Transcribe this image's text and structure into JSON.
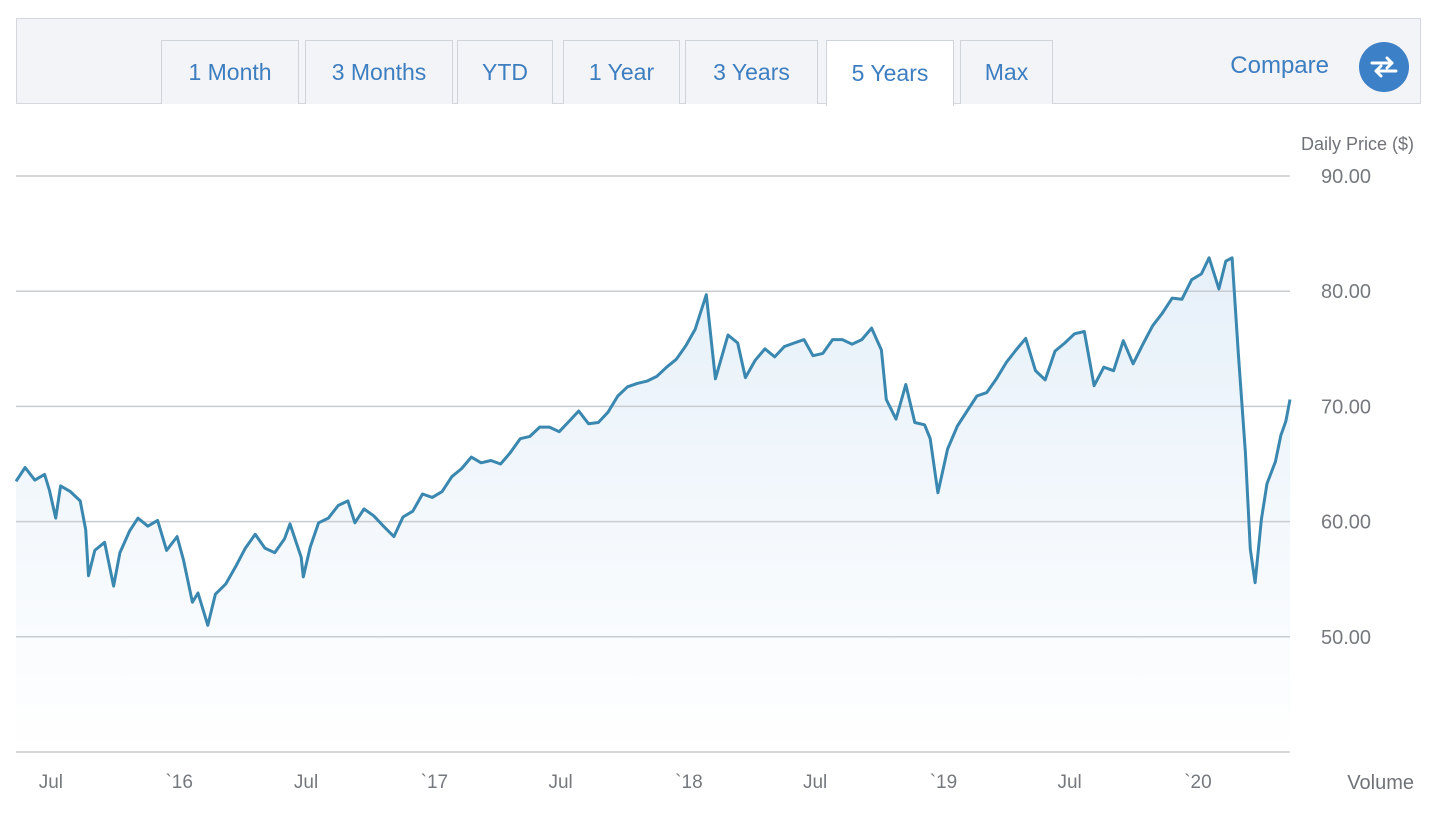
{
  "range_tabs": [
    {
      "label": "1 Month",
      "active": false
    },
    {
      "label": "3 Months",
      "active": false
    },
    {
      "label": "YTD",
      "active": false
    },
    {
      "label": "1 Year",
      "active": false
    },
    {
      "label": "3 Years",
      "active": false
    },
    {
      "label": "5 Years",
      "active": true
    },
    {
      "label": "Max",
      "active": false
    }
  ],
  "compare_label": "Compare",
  "compare_icon": "swap-arrows-icon",
  "volume_label": "Volume",
  "colors": {
    "accent": "#3d7ec0",
    "line": "#3a87b0",
    "fill": "#e6f0f9",
    "grid": "#c9ccd1"
  },
  "chart_data": {
    "type": "line",
    "ylabel": "Daily Price ($)",
    "ylim": [
      40,
      90
    ],
    "y_ticks": [
      50,
      60,
      70,
      80,
      90
    ],
    "y_tick_labels": [
      "50.00",
      "60.00",
      "70.00",
      "80.00",
      "90.00"
    ],
    "x_range": [
      "2015-05-12",
      "2020-05-12"
    ],
    "x_ticks": [
      {
        "date": "2015-07-01",
        "label": "Jul"
      },
      {
        "date": "2016-01-01",
        "label": "`16"
      },
      {
        "date": "2016-07-01",
        "label": "Jul"
      },
      {
        "date": "2017-01-01",
        "label": "`17"
      },
      {
        "date": "2017-07-01",
        "label": "Jul"
      },
      {
        "date": "2018-01-01",
        "label": "`18"
      },
      {
        "date": "2018-07-01",
        "label": "Jul"
      },
      {
        "date": "2019-01-01",
        "label": "`19"
      },
      {
        "date": "2019-07-01",
        "label": "Jul"
      },
      {
        "date": "2020-01-01",
        "label": "`20"
      }
    ],
    "series": [
      {
        "name": "",
        "points": [
          [
            "2015-05-12",
            63.5
          ],
          [
            "2015-05-25",
            64.7
          ],
          [
            "2015-06-08",
            63.6
          ],
          [
            "2015-06-22",
            64.1
          ],
          [
            "2015-06-29",
            62.7
          ],
          [
            "2015-07-08",
            60.3
          ],
          [
            "2015-07-15",
            63.1
          ],
          [
            "2015-07-29",
            62.6
          ],
          [
            "2015-08-12",
            61.8
          ],
          [
            "2015-08-20",
            59.3
          ],
          [
            "2015-08-24",
            55.3
          ],
          [
            "2015-09-02",
            57.5
          ],
          [
            "2015-09-16",
            58.2
          ],
          [
            "2015-09-29",
            54.4
          ],
          [
            "2015-10-08",
            57.3
          ],
          [
            "2015-10-22",
            59.2
          ],
          [
            "2015-11-03",
            60.3
          ],
          [
            "2015-11-17",
            59.6
          ],
          [
            "2015-12-01",
            60.1
          ],
          [
            "2015-12-14",
            57.5
          ],
          [
            "2015-12-29",
            58.7
          ],
          [
            "2016-01-07",
            56.7
          ],
          [
            "2016-01-20",
            53.0
          ],
          [
            "2016-01-28",
            53.8
          ],
          [
            "2016-02-11",
            51.0
          ],
          [
            "2016-02-22",
            53.7
          ],
          [
            "2016-03-08",
            54.6
          ],
          [
            "2016-03-22",
            56.1
          ],
          [
            "2016-04-05",
            57.7
          ],
          [
            "2016-04-19",
            58.9
          ],
          [
            "2016-05-03",
            57.7
          ],
          [
            "2016-05-17",
            57.3
          ],
          [
            "2016-05-31",
            58.5
          ],
          [
            "2016-06-08",
            59.8
          ],
          [
            "2016-06-24",
            56.9
          ],
          [
            "2016-06-27",
            55.2
          ],
          [
            "2016-07-07",
            57.8
          ],
          [
            "2016-07-19",
            59.9
          ],
          [
            "2016-08-02",
            60.3
          ],
          [
            "2016-08-16",
            61.4
          ],
          [
            "2016-08-30",
            61.8
          ],
          [
            "2016-09-09",
            59.9
          ],
          [
            "2016-09-22",
            61.1
          ],
          [
            "2016-10-06",
            60.5
          ],
          [
            "2016-10-20",
            59.6
          ],
          [
            "2016-11-04",
            58.7
          ],
          [
            "2016-11-17",
            60.4
          ],
          [
            "2016-12-01",
            60.9
          ],
          [
            "2016-12-15",
            62.4
          ],
          [
            "2016-12-29",
            62.1
          ],
          [
            "2017-01-12",
            62.6
          ],
          [
            "2017-01-26",
            63.9
          ],
          [
            "2017-02-09",
            64.6
          ],
          [
            "2017-02-23",
            65.6
          ],
          [
            "2017-03-09",
            65.1
          ],
          [
            "2017-03-23",
            65.3
          ],
          [
            "2017-04-06",
            65.0
          ],
          [
            "2017-04-20",
            66.0
          ],
          [
            "2017-05-04",
            67.2
          ],
          [
            "2017-05-18",
            67.4
          ],
          [
            "2017-06-01",
            68.2
          ],
          [
            "2017-06-15",
            68.2
          ],
          [
            "2017-06-29",
            67.8
          ],
          [
            "2017-07-13",
            68.7
          ],
          [
            "2017-07-27",
            69.6
          ],
          [
            "2017-08-10",
            68.5
          ],
          [
            "2017-08-24",
            68.6
          ],
          [
            "2017-09-07",
            69.5
          ],
          [
            "2017-09-21",
            70.9
          ],
          [
            "2017-10-05",
            71.7
          ],
          [
            "2017-10-19",
            72.0
          ],
          [
            "2017-11-02",
            72.2
          ],
          [
            "2017-11-16",
            72.6
          ],
          [
            "2017-11-30",
            73.4
          ],
          [
            "2017-12-14",
            74.1
          ],
          [
            "2017-12-28",
            75.3
          ],
          [
            "2018-01-10",
            76.7
          ],
          [
            "2018-01-26",
            79.7
          ],
          [
            "2018-02-08",
            72.4
          ],
          [
            "2018-02-26",
            76.2
          ],
          [
            "2018-03-12",
            75.5
          ],
          [
            "2018-03-23",
            72.5
          ],
          [
            "2018-04-06",
            74.0
          ],
          [
            "2018-04-20",
            75.0
          ],
          [
            "2018-05-04",
            74.3
          ],
          [
            "2018-05-18",
            75.2
          ],
          [
            "2018-06-01",
            75.5
          ],
          [
            "2018-06-15",
            75.8
          ],
          [
            "2018-06-28",
            74.4
          ],
          [
            "2018-07-12",
            74.6
          ],
          [
            "2018-07-26",
            75.8
          ],
          [
            "2018-08-09",
            75.8
          ],
          [
            "2018-08-23",
            75.4
          ],
          [
            "2018-09-06",
            75.8
          ],
          [
            "2018-09-20",
            76.8
          ],
          [
            "2018-10-04",
            74.9
          ],
          [
            "2018-10-11",
            70.6
          ],
          [
            "2018-10-25",
            68.9
          ],
          [
            "2018-11-08",
            71.9
          ],
          [
            "2018-11-21",
            68.6
          ],
          [
            "2018-12-05",
            68.4
          ],
          [
            "2018-12-13",
            67.2
          ],
          [
            "2018-12-24",
            62.5
          ],
          [
            "2019-01-07",
            66.3
          ],
          [
            "2019-01-21",
            68.3
          ],
          [
            "2019-02-04",
            69.6
          ],
          [
            "2019-02-18",
            70.9
          ],
          [
            "2019-03-04",
            71.2
          ],
          [
            "2019-03-18",
            72.4
          ],
          [
            "2019-04-01",
            73.8
          ],
          [
            "2019-04-15",
            74.9
          ],
          [
            "2019-04-29",
            75.9
          ],
          [
            "2019-05-13",
            73.1
          ],
          [
            "2019-05-27",
            72.3
          ],
          [
            "2019-06-10",
            74.8
          ],
          [
            "2019-06-24",
            75.5
          ],
          [
            "2019-07-08",
            76.3
          ],
          [
            "2019-07-22",
            76.5
          ],
          [
            "2019-08-05",
            71.8
          ],
          [
            "2019-08-19",
            73.4
          ],
          [
            "2019-09-02",
            73.1
          ],
          [
            "2019-09-16",
            75.7
          ],
          [
            "2019-09-30",
            73.7
          ],
          [
            "2019-10-14",
            75.4
          ],
          [
            "2019-10-28",
            77.0
          ],
          [
            "2019-11-11",
            78.1
          ],
          [
            "2019-11-25",
            79.4
          ],
          [
            "2019-12-09",
            79.3
          ],
          [
            "2019-12-23",
            81.0
          ],
          [
            "2020-01-06",
            81.5
          ],
          [
            "2020-01-17",
            82.9
          ],
          [
            "2020-01-31",
            80.2
          ],
          [
            "2020-02-10",
            82.6
          ],
          [
            "2020-02-19",
            82.9
          ],
          [
            "2020-02-28",
            74.5
          ],
          [
            "2020-03-09",
            66.0
          ],
          [
            "2020-03-16",
            57.6
          ],
          [
            "2020-03-23",
            54.7
          ],
          [
            "2020-04-01",
            60.2
          ],
          [
            "2020-04-09",
            63.3
          ],
          [
            "2020-04-21",
            65.2
          ],
          [
            "2020-04-29",
            67.5
          ],
          [
            "2020-05-06",
            68.7
          ],
          [
            "2020-05-12",
            70.6
          ]
        ]
      }
    ]
  }
}
